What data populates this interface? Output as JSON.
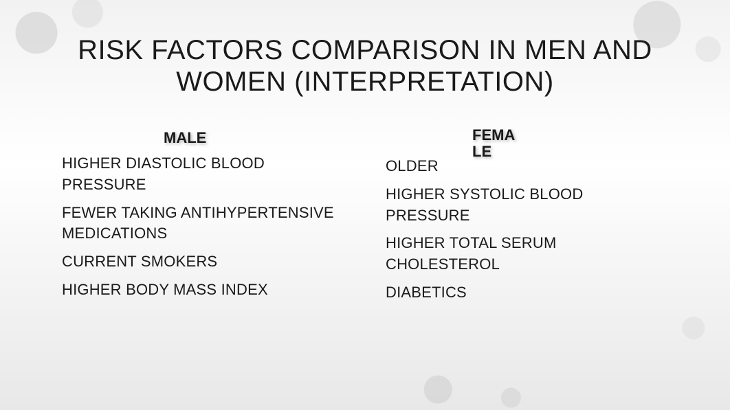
{
  "slide": {
    "title": "RISK FACTORS COMPARISON IN MEN AND WOMEN (INTERPRETATION)",
    "title_fontsize": 40,
    "title_color": "#1a1a1a",
    "background_gradient": [
      "#f2f2f2",
      "#ffffff",
      "#e8e8e8"
    ],
    "bubble_color": "#c8c8c8",
    "columns": {
      "male": {
        "header": "MALE",
        "header_fontsize": 22,
        "header_shadow": "rgba(0,0,0,0.28)",
        "items": [
          "HIGHER DIASTOLIC BLOOD PRESSURE",
          "FEWER TAKING ANTIHYPERTENSIVE MEDICATIONS",
          "CURRENT SMOKERS",
          "HIGHER BODY MASS INDEX"
        ]
      },
      "female": {
        "header": "FEMALE",
        "header_fontsize": 22,
        "header_shadow": "rgba(0,0,0,0.28)",
        "items": [
          "OLDER",
          "HIGHER SYSTOLIC BLOOD PRESSURE",
          "HIGHER TOTAL SERUM CHOLESTEROL",
          "DIABETICS"
        ]
      }
    },
    "item_fontsize": 22,
    "item_color": "#1a1a1a"
  }
}
